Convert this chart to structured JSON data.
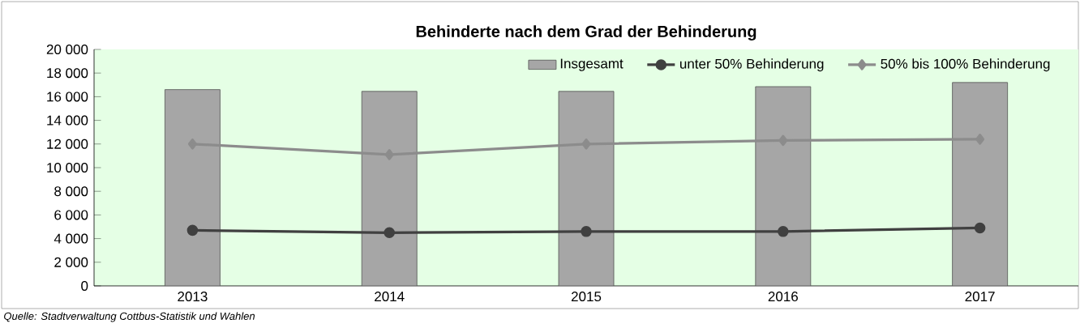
{
  "chart_data": {
    "type": "bar",
    "title": "Behinderte nach dem Grad der Behinderung",
    "categories": [
      "2013",
      "2014",
      "2015",
      "2016",
      "2017"
    ],
    "series": [
      {
        "name": "Insgesamt",
        "color": "#a6a6a6",
        "values": [
          16600,
          16450,
          16450,
          16850,
          17200
        ]
      },
      {
        "name": "unter 50% Behinderung",
        "type": "line",
        "color": "#404040",
        "marker": "circle",
        "values": [
          4700,
          4500,
          4600,
          4600,
          4900
        ]
      },
      {
        "name": "50% bis 100% Behinderung",
        "type": "line",
        "color": "#8c8c8c",
        "marker": "diamond",
        "values": [
          12000,
          11100,
          12000,
          12300,
          12400
        ]
      }
    ],
    "ylim": [
      0,
      20000
    ],
    "yticks": [
      0,
      {
        "value": 2000,
        "label": "2 000"
      },
      {
        "value": 4000,
        "label": "4 000"
      },
      {
        "value": 6000,
        "label": "6 000"
      },
      {
        "value": 8000,
        "label": "8 000"
      },
      {
        "value": 10000,
        "label": "10 000"
      },
      {
        "value": 12000,
        "label": "12 000"
      },
      {
        "value": 14000,
        "label": "14 000"
      },
      {
        "value": 16000,
        "label": "16 000"
      },
      {
        "value": 18000,
        "label": "18 000"
      },
      {
        "value": 20000,
        "label": "20 000"
      }
    ],
    "legend": "top right",
    "annotations": [
      "Quelle: Stadtverwaltung Cottbus-Statistik und Wahlen"
    ]
  }
}
